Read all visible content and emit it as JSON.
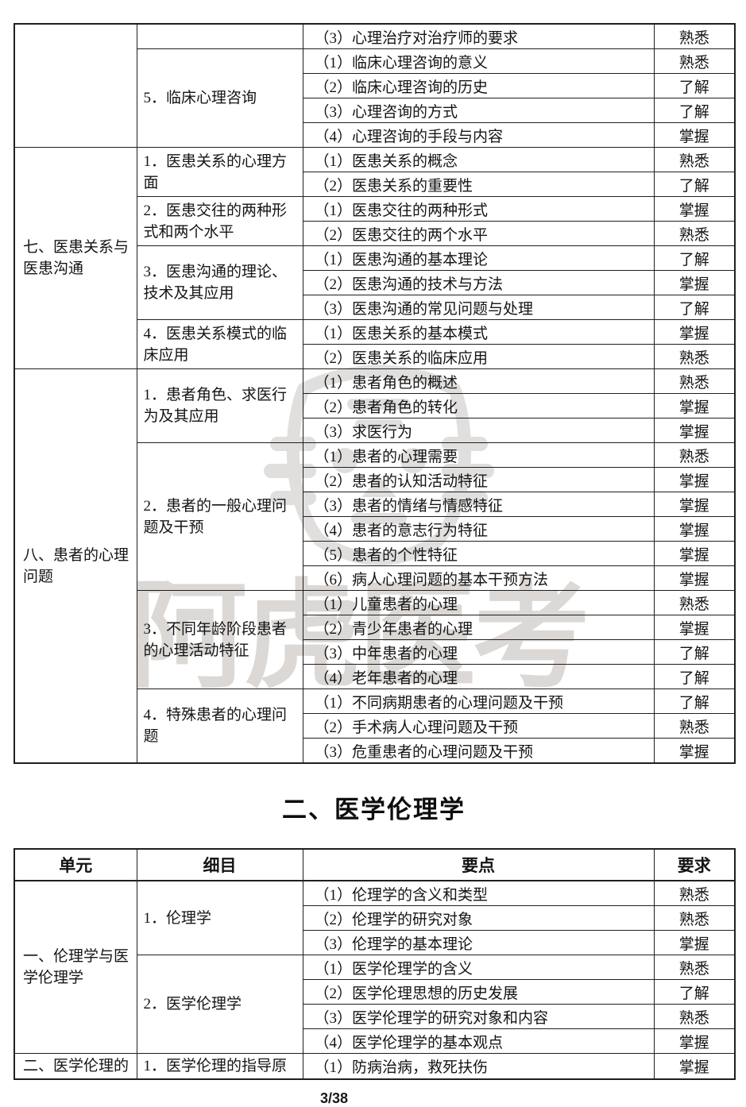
{
  "page": {
    "section_title": "二、医学伦理学",
    "footer_page_indicator": "3/38",
    "watermark_text": "阿虎医考",
    "colors": {
      "border": "#1f1f1f",
      "text": "#141414",
      "watermark": "#d5d2d0",
      "background": "#ffffff"
    }
  },
  "requirement_levels": [
    "掌握",
    "熟悉",
    "了解"
  ],
  "tables": [
    {
      "rows": [
        [
          {
            "type": "unit",
            "text": "",
            "rowspan": 5
          },
          {
            "type": "detail",
            "text": ""
          },
          {
            "type": "point",
            "text": "（3）心理治疗对治疗师的要求"
          },
          {
            "type": "req",
            "text": "熟悉"
          }
        ],
        [
          {
            "type": "detail",
            "text": "5．临床心理咨询",
            "rowspan": 4
          },
          {
            "type": "point",
            "text": "（1）临床心理咨询的意义"
          },
          {
            "type": "req",
            "text": "熟悉"
          }
        ],
        [
          {
            "type": "point",
            "text": "（2）临床心理咨询的历史"
          },
          {
            "type": "req",
            "text": "了解"
          }
        ],
        [
          {
            "type": "point",
            "text": "（3）心理咨询的方式"
          },
          {
            "type": "req",
            "text": "了解"
          }
        ],
        [
          {
            "type": "point",
            "text": "（4）心理咨询的手段与内容"
          },
          {
            "type": "req",
            "text": "掌握"
          }
        ],
        [
          {
            "type": "unit",
            "text": "七、医患关系与医患沟通",
            "rowspan": 9,
            "sec": true
          },
          {
            "type": "detail",
            "text": "1．医患关系的心理方面",
            "rowspan": 2,
            "sec": true
          },
          {
            "type": "point",
            "text": "（1）医患关系的概念",
            "sec": true
          },
          {
            "type": "req",
            "text": "熟悉",
            "sec": true
          }
        ],
        [
          {
            "type": "point",
            "text": "（2）医患关系的重要性"
          },
          {
            "type": "req",
            "text": "了解"
          }
        ],
        [
          {
            "type": "detail",
            "text": "2．医患交往的两种形式和两个水平",
            "rowspan": 2
          },
          {
            "type": "point",
            "text": "（1）医患交往的两种形式"
          },
          {
            "type": "req",
            "text": "掌握"
          }
        ],
        [
          {
            "type": "point",
            "text": "（2）医患交往的两个水平"
          },
          {
            "type": "req",
            "text": "熟悉"
          }
        ],
        [
          {
            "type": "detail",
            "text": "3．医患沟通的理论、技术及其应用",
            "rowspan": 3
          },
          {
            "type": "point",
            "text": "（1）医患沟通的基本理论"
          },
          {
            "type": "req",
            "text": "了解"
          }
        ],
        [
          {
            "type": "point",
            "text": "（2）医患沟通的技术与方法"
          },
          {
            "type": "req",
            "text": "掌握"
          }
        ],
        [
          {
            "type": "point",
            "text": "（3）医患沟通的常见问题与处理"
          },
          {
            "type": "req",
            "text": "了解"
          }
        ],
        [
          {
            "type": "detail",
            "text": "4．医患关系模式的临床应用",
            "rowspan": 2
          },
          {
            "type": "point",
            "text": "（1）医患关系的基本模式"
          },
          {
            "type": "req",
            "text": "掌握"
          }
        ],
        [
          {
            "type": "point",
            "text": "（2）医患关系的临床应用"
          },
          {
            "type": "req",
            "text": "熟悉"
          }
        ],
        [
          {
            "type": "unit",
            "text": "八、患者的心理问题",
            "rowspan": 16,
            "sec": true
          },
          {
            "type": "detail",
            "text": "1．患者角色、求医行为及其应用",
            "rowspan": 3,
            "sec": true
          },
          {
            "type": "point",
            "text": "（1）患者角色的概述",
            "sec": true
          },
          {
            "type": "req",
            "text": "熟悉",
            "sec": true
          }
        ],
        [
          {
            "type": "point",
            "text": "（2）患者角色的转化"
          },
          {
            "type": "req",
            "text": "掌握"
          }
        ],
        [
          {
            "type": "point",
            "text": "（3）求医行为"
          },
          {
            "type": "req",
            "text": "掌握"
          }
        ],
        [
          {
            "type": "detail",
            "text": "2．患者的一般心理问题及干预",
            "rowspan": 6
          },
          {
            "type": "point",
            "text": "（1）患者的心理需要"
          },
          {
            "type": "req",
            "text": "熟悉"
          }
        ],
        [
          {
            "type": "point",
            "text": "（2）患者的认知活动特征"
          },
          {
            "type": "req",
            "text": "掌握"
          }
        ],
        [
          {
            "type": "point",
            "text": "（3）患者的情绪与情感特征"
          },
          {
            "type": "req",
            "text": "掌握"
          }
        ],
        [
          {
            "type": "point",
            "text": "（4）患者的意志行为特征"
          },
          {
            "type": "req",
            "text": "掌握"
          }
        ],
        [
          {
            "type": "point",
            "text": "（5）患者的个性特征"
          },
          {
            "type": "req",
            "text": "掌握"
          }
        ],
        [
          {
            "type": "point",
            "text": "（6）病人心理问题的基本干预方法"
          },
          {
            "type": "req",
            "text": "掌握"
          }
        ],
        [
          {
            "type": "detail",
            "text": "3．不同年龄阶段患者的心理活动特征",
            "rowspan": 4
          },
          {
            "type": "point",
            "text": "（1）儿童患者的心理"
          },
          {
            "type": "req",
            "text": "熟悉"
          }
        ],
        [
          {
            "type": "point",
            "text": "（2）青少年患者的心理"
          },
          {
            "type": "req",
            "text": "掌握"
          }
        ],
        [
          {
            "type": "point",
            "text": "（3）中年患者的心理"
          },
          {
            "type": "req",
            "text": "了解"
          }
        ],
        [
          {
            "type": "point",
            "text": "（4）老年患者的心理"
          },
          {
            "type": "req",
            "text": "了解"
          }
        ],
        [
          {
            "type": "detail",
            "text": "4．特殊患者的心理问题",
            "rowspan": 3
          },
          {
            "type": "point",
            "text": "（1）不同病期患者的心理问题及干预"
          },
          {
            "type": "req",
            "text": "了解"
          }
        ],
        [
          {
            "type": "point",
            "text": "（2）手术病人心理问题及干预"
          },
          {
            "type": "req",
            "text": "熟悉"
          }
        ],
        [
          {
            "type": "point",
            "text": "（3）危重患者的心理问题及干预"
          },
          {
            "type": "req",
            "text": "掌握"
          }
        ]
      ]
    },
    {
      "headers": [
        "单元",
        "细目",
        "要点",
        "要求"
      ],
      "rows": [
        [
          {
            "type": "unit",
            "text": "一、伦理学与医学伦理学",
            "rowspan": 7
          },
          {
            "type": "detail",
            "text": "1．伦理学",
            "rowspan": 3
          },
          {
            "type": "point",
            "text": "（1）伦理学的含义和类型"
          },
          {
            "type": "req",
            "text": "熟悉"
          }
        ],
        [
          {
            "type": "point",
            "text": "（2）伦理学的研究对象"
          },
          {
            "type": "req",
            "text": "熟悉"
          }
        ],
        [
          {
            "type": "point",
            "text": "（3）伦理学的基本理论"
          },
          {
            "type": "req",
            "text": "掌握"
          }
        ],
        [
          {
            "type": "detail",
            "text": "2．医学伦理学",
            "rowspan": 4
          },
          {
            "type": "point",
            "text": "（1）医学伦理学的含义"
          },
          {
            "type": "req",
            "text": "熟悉"
          }
        ],
        [
          {
            "type": "point",
            "text": "（2）医学伦理思想的历史发展"
          },
          {
            "type": "req",
            "text": "了解"
          }
        ],
        [
          {
            "type": "point",
            "text": "（3）医学伦理学的研究对象和内容"
          },
          {
            "type": "req",
            "text": "熟悉"
          }
        ],
        [
          {
            "type": "point",
            "text": "（4）医学伦理学的基本观点"
          },
          {
            "type": "req",
            "text": "掌握"
          }
        ],
        [
          {
            "type": "unit",
            "text": "二、医学伦理的",
            "sec": true
          },
          {
            "type": "detail",
            "text": "1．医学伦理的指导原",
            "sec": true
          },
          {
            "type": "point",
            "text": "（1）防病治病，救死扶伤",
            "sec": true
          },
          {
            "type": "req",
            "text": "掌握",
            "sec": true
          }
        ]
      ]
    }
  ]
}
